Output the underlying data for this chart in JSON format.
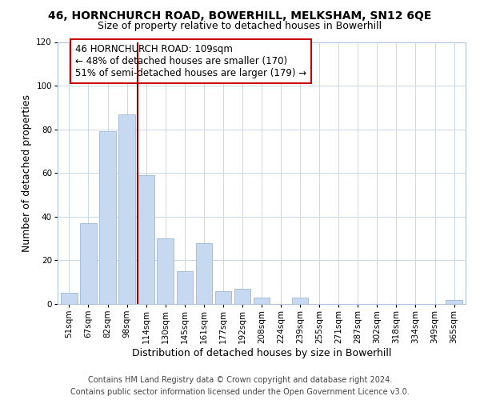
{
  "title": "46, HORNCHURCH ROAD, BOWERHILL, MELKSHAM, SN12 6QE",
  "subtitle": "Size of property relative to detached houses in Bowerhill",
  "xlabel": "Distribution of detached houses by size in Bowerhill",
  "ylabel": "Number of detached properties",
  "bar_labels": [
    "51sqm",
    "67sqm",
    "82sqm",
    "98sqm",
    "114sqm",
    "130sqm",
    "145sqm",
    "161sqm",
    "177sqm",
    "192sqm",
    "208sqm",
    "224sqm",
    "239sqm",
    "255sqm",
    "271sqm",
    "287sqm",
    "302sqm",
    "318sqm",
    "334sqm",
    "349sqm",
    "365sqm"
  ],
  "bar_values": [
    5,
    37,
    79,
    87,
    59,
    30,
    15,
    28,
    6,
    7,
    3,
    0,
    3,
    0,
    0,
    0,
    0,
    0,
    0,
    0,
    2
  ],
  "bar_color": "#c6d9f1",
  "bar_edge_color": "#9ab8d8",
  "vline_x_index": 4,
  "vline_color": "#990000",
  "ylim": [
    0,
    120
  ],
  "yticks": [
    0,
    20,
    40,
    60,
    80,
    100,
    120
  ],
  "annotation_text": "46 HORNCHURCH ROAD: 109sqm\n← 48% of detached houses are smaller (170)\n51% of semi-detached houses are larger (179) →",
  "annotation_box_edgecolor": "#cc0000",
  "footer_line1": "Contains HM Land Registry data © Crown copyright and database right 2024.",
  "footer_line2": "Contains public sector information licensed under the Open Government Licence v3.0.",
  "title_fontsize": 10,
  "subtitle_fontsize": 9,
  "axis_label_fontsize": 9,
  "tick_fontsize": 7.5,
  "annotation_fontsize": 8.5,
  "footer_fontsize": 7
}
